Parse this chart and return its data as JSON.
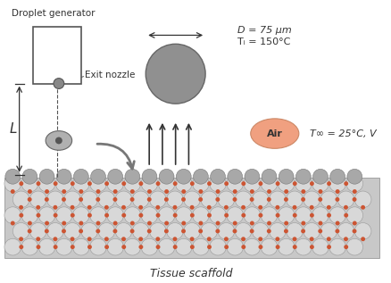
{
  "bg_color": "#ffffff",
  "text_droplet_gen": "Droplet generator",
  "text_exit_nozzle": "Exit nozzle",
  "text_L": "L",
  "text_D": "D = 75 μm",
  "text_Ti": "Tᵢ = 150°C",
  "text_air": "Air",
  "text_Tinf": "T∞ = 25°C, V",
  "text_tissue": "Tissue scaffold",
  "orange_dot_color": "#cc5533",
  "air_blob_color": "#f0a080"
}
